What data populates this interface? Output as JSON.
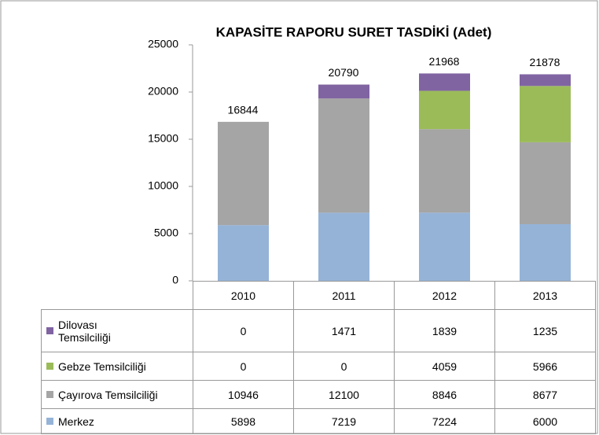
{
  "chart_data": {
    "type": "stacked_bar",
    "title": "KAPASİTE RAPORU SURET TASDİKİ (Adet)",
    "categories": [
      "2010",
      "2011",
      "2012",
      "2013"
    ],
    "series": [
      {
        "name": "Dilovası Temsilciliği",
        "color": "#8064a2",
        "values": [
          0,
          1471,
          1839,
          1235
        ]
      },
      {
        "name": "Gebze Temsilciliği",
        "color": "#9bbb59",
        "values": [
          0,
          0,
          4059,
          5966
        ]
      },
      {
        "name": "Çayırova Temsilciliği",
        "color": "#a5a5a5",
        "values": [
          10946,
          12100,
          8846,
          8677
        ]
      },
      {
        "name": "Merkez",
        "color": "#95b3d7",
        "values": [
          5898,
          7219,
          7224,
          6000
        ]
      }
    ],
    "totals": [
      16844,
      20790,
      21968,
      21878
    ],
    "ylim": [
      0,
      25000
    ],
    "yticks": [
      0,
      5000,
      10000,
      15000,
      20000,
      25000
    ],
    "grid": false
  }
}
